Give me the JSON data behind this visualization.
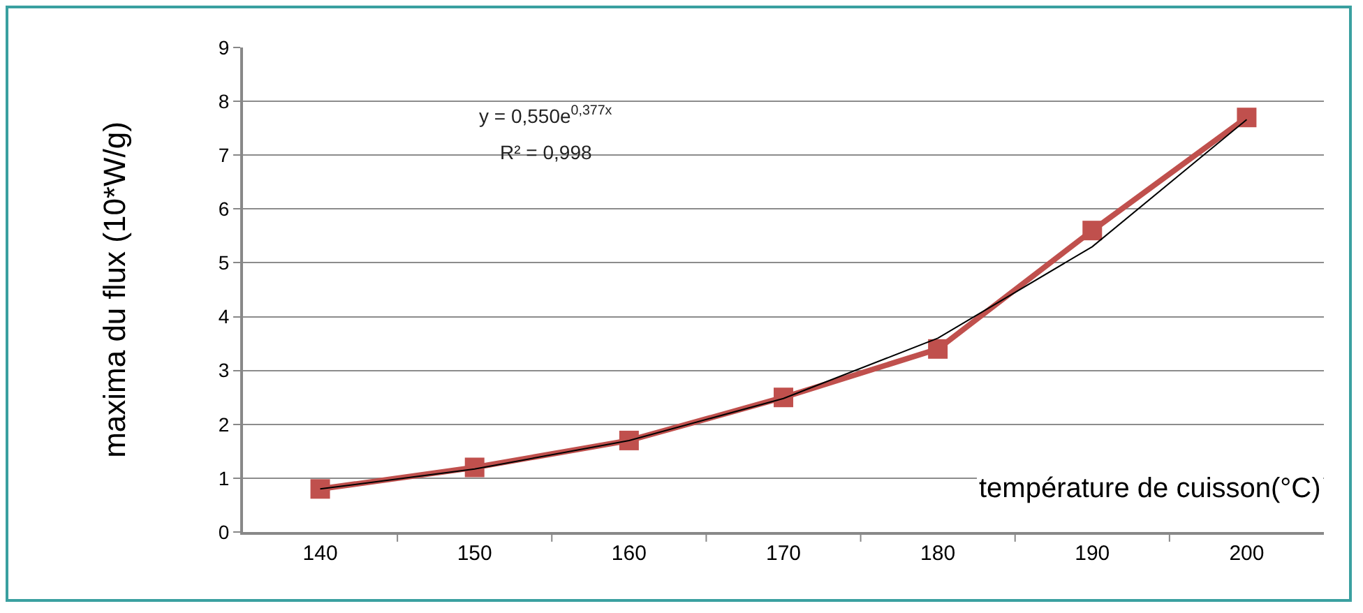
{
  "chart_data": {
    "type": "line",
    "xlabel": "température de cuisson(°C)",
    "ylabel": "maxima du flux (10*W/g)",
    "categories": [
      "140",
      "150",
      "160",
      "170",
      "180",
      "190",
      "200"
    ],
    "series": [
      {
        "color": "#c0504d",
        "values": [
          0.8,
          1.2,
          1.7,
          2.5,
          3.4,
          5.6,
          7.7
        ],
        "marker": "square"
      },
      {
        "type": "line",
        "color": "#000000",
        "x": [
          "140",
          "150",
          "160",
          "170",
          "180",
          "190",
          "200"
        ],
        "values": [
          0.8,
          1.17,
          1.7,
          2.48,
          3.6,
          5.3,
          7.66
        ],
        "marker": "none"
      }
    ],
    "annotations": [
      "y = 0,550e$^{0,377x}$",
      "R² = 0,998"
    ],
    "ylim": [
      0,
      9
    ],
    "yticks": [
      0,
      1,
      2,
      3,
      4,
      5,
      6,
      7,
      8,
      9
    ],
    "grid": "y",
    "line_style": "solid"
  }
}
